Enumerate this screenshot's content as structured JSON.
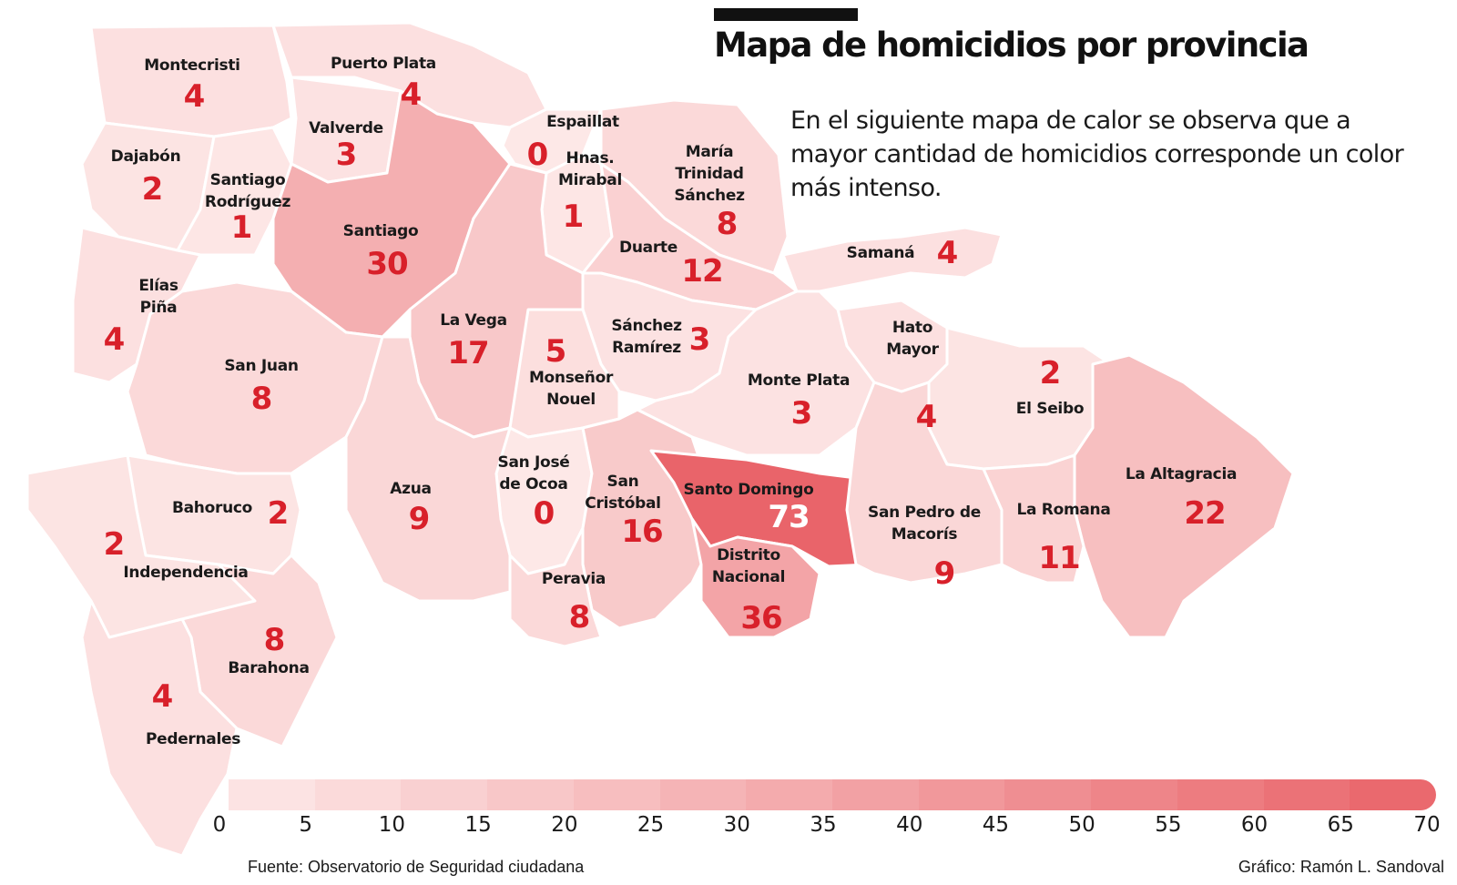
{
  "title": "Mapa de  homicidios por provincia",
  "description": "En el siguiente mapa de calor se observa que a mayor cantidad de homicidios corresponde un color más intenso.",
  "source": "Fuente: Observatorio de Seguridad ciudadana",
  "credit": "Gráfico: Ramón L. Sandoval",
  "colors": {
    "min": "#fde8e7",
    "max": "#e9646a",
    "border": "#ffffff",
    "value_text": "#d8202a",
    "title_bar": "#111111"
  },
  "scale": {
    "ticks": [
      "0",
      "5",
      "10",
      "15",
      "20",
      "25",
      "30",
      "35",
      "40",
      "45",
      "50",
      "55",
      "60",
      "65",
      "70"
    ],
    "min": 0,
    "max": 70
  },
  "provinces": [
    {
      "name": "Montecristi",
      "value": "4"
    },
    {
      "name": "Puerto Plata",
      "value": "4"
    },
    {
      "name": "Valverde",
      "value": "3"
    },
    {
      "name": "Espaillat",
      "value": "0"
    },
    {
      "name": "Hnas.\nMirabal",
      "value": "1"
    },
    {
      "name": "María\nTrinidad\nSánchez",
      "value": "8"
    },
    {
      "name": "Dajabón",
      "value": "2"
    },
    {
      "name": "Santiago\nRodríguez",
      "value": "1"
    },
    {
      "name": "Santiago",
      "value": "30"
    },
    {
      "name": "Duarte",
      "value": "12"
    },
    {
      "name": "Samaná",
      "value": "4"
    },
    {
      "name": "Elías\nPiña",
      "value": "4"
    },
    {
      "name": "La Vega",
      "value": "17"
    },
    {
      "name": "Sánchez\nRamírez",
      "value": "3"
    },
    {
      "name": "Monseñor\nNouel",
      "value": "5"
    },
    {
      "name": "Hato\nMayor",
      "value": "4"
    },
    {
      "name": "El Seibo",
      "value": "2"
    },
    {
      "name": "San Juan",
      "value": "8"
    },
    {
      "name": "Monte Plata",
      "value": "3"
    },
    {
      "name": "San José\nde Ocoa",
      "value": "0"
    },
    {
      "name": "Azua",
      "value": "9"
    },
    {
      "name": "San\nCristóbal",
      "value": "16"
    },
    {
      "name": "Santo Domingo",
      "value": "73"
    },
    {
      "name": "La Altagracia",
      "value": "22"
    },
    {
      "name": "Bahoruco",
      "value": "2"
    },
    {
      "name": "Independencia",
      "value": "2"
    },
    {
      "name": "San Pedro de\nMacorís",
      "value": "9"
    },
    {
      "name": "La Romana",
      "value": "11"
    },
    {
      "name": "Distrito\nNacional",
      "value": "36"
    },
    {
      "name": "Peravia",
      "value": "8"
    },
    {
      "name": "Barahona",
      "value": "8"
    },
    {
      "name": "Pedernales",
      "value": "4"
    }
  ]
}
